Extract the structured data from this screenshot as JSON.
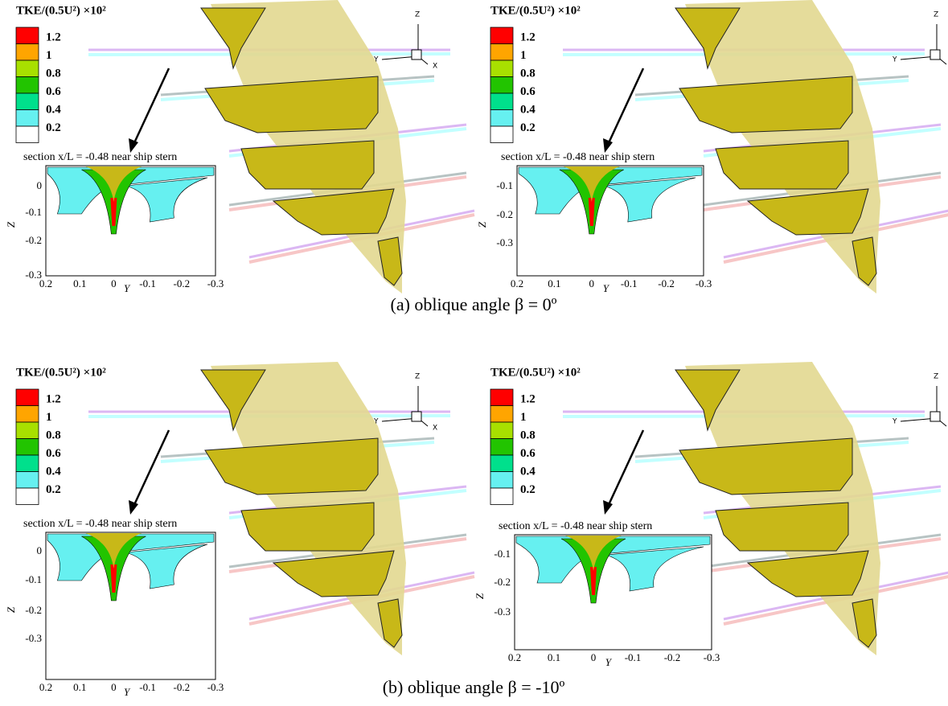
{
  "panels": [
    {
      "legend": {
        "title": "TKE/(0.5U²) ×10²",
        "labels": [
          "1.2",
          "1",
          "0.8",
          "0.6",
          "0.4",
          "0.2"
        ]
      },
      "triad": [
        "Z",
        "Y",
        "X"
      ],
      "inset": {
        "title": "section x/L = -0.48 near ship stern",
        "xlabel": "Y",
        "ylabel": "Z",
        "xticks": [
          "0.2",
          "0.1",
          "0",
          "-0.1",
          "-0.2",
          "-0.3"
        ],
        "yticks": [
          "0",
          "-0.1",
          "-0.2",
          "-0.3"
        ]
      }
    },
    {
      "legend": {
        "title": "TKE/(0.5U²) ×10²",
        "labels": [
          "1.2",
          "1",
          "0.8",
          "0.6",
          "0.4",
          "0.2"
        ]
      },
      "triad": [
        "Z",
        "Y"
      ],
      "inset": {
        "title": "section x/L = -0.48 near ship stern",
        "xlabel": "Y",
        "ylabel": "Z",
        "xticks": [
          "0.2",
          "0.1",
          "0",
          "-0.1",
          "-0.2",
          "-0.3"
        ],
        "yticks": [
          "-0.1",
          "-0.2",
          "-0.3"
        ]
      }
    },
    {
      "legend": {
        "title": "TKE/(0.5U²) ×10²",
        "labels": [
          "1.2",
          "1",
          "0.8",
          "0.6",
          "0.4",
          "0.2"
        ]
      },
      "triad": [
        "Z",
        "Y",
        "X"
      ],
      "inset": {
        "title": "section x/L = -0.48 near ship stern",
        "xlabel": "Y",
        "ylabel": "Z",
        "xticks": [
          "0.2",
          "0.1",
          "0",
          "-0.1",
          "-0.2",
          "-0.3"
        ],
        "yticks": [
          "0",
          "-0.1",
          "-0.2",
          "-0.3"
        ]
      }
    },
    {
      "legend": {
        "title": "TKE/(0.5U²) ×10²",
        "labels": [
          "1.2",
          "1",
          "0.8",
          "0.6",
          "0.4",
          "0.2"
        ]
      },
      "triad": [
        "Z",
        "Y"
      ],
      "inset": {
        "title": "section x/L = -0.48 near ship stern",
        "xlabel": "Y",
        "ylabel": "Z",
        "xticks": [
          "0.2",
          "0.1",
          "0",
          "-0.1",
          "-0.2",
          "-0.3"
        ],
        "yticks": [
          "-0.1",
          "-0.2",
          "-0.3"
        ]
      }
    }
  ],
  "captions": [
    "(a) oblique angle β = 0º",
    "(b) oblique angle β = -10º"
  ]
}
